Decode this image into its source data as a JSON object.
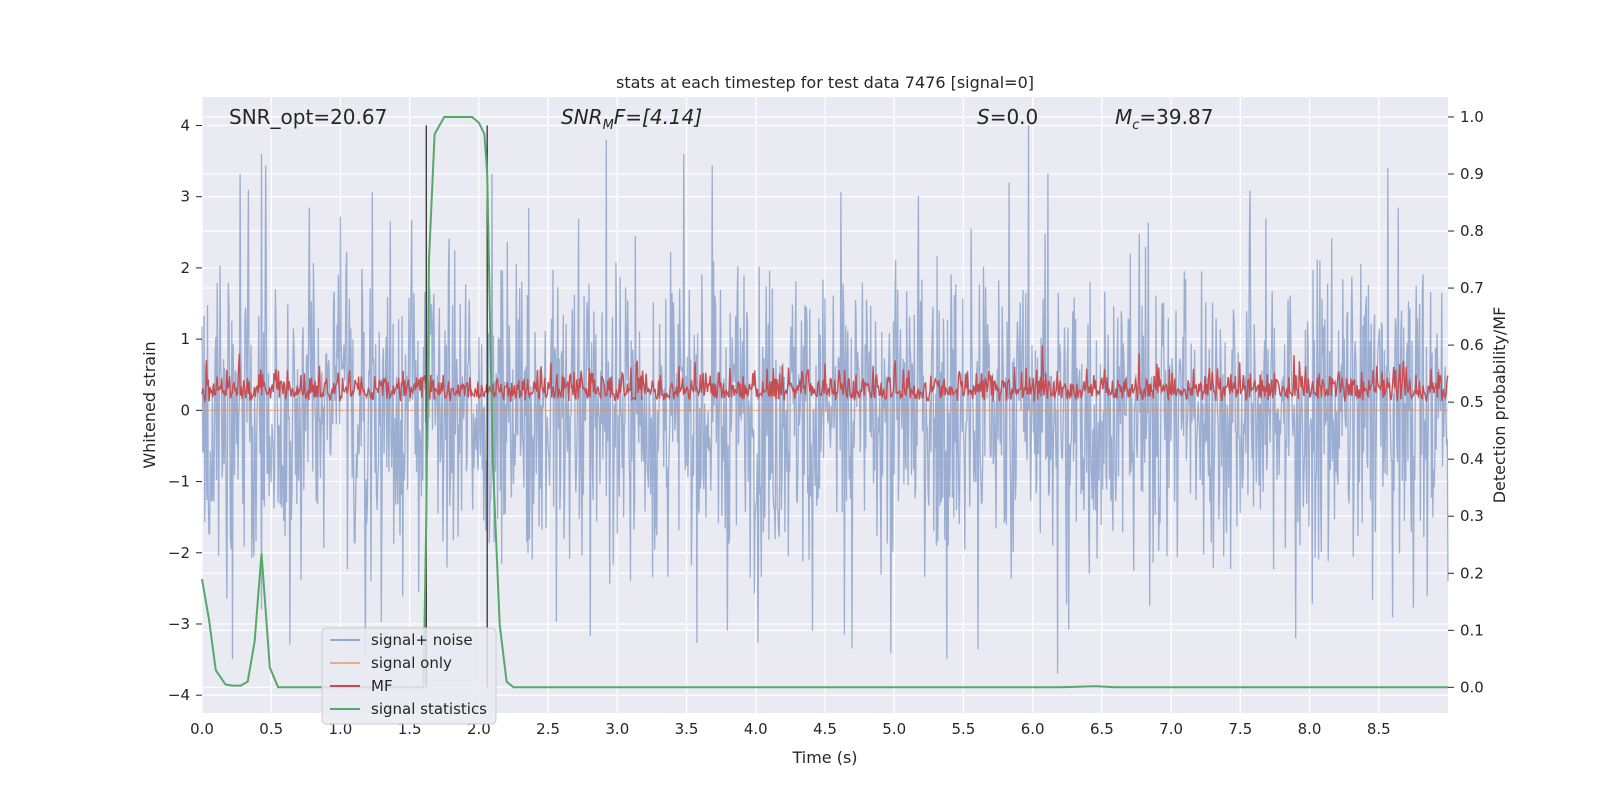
{
  "chart_data": {
    "type": "line",
    "title": "stats at each timestep for test data 7476 [signal=0]",
    "xlabel": "Time (s)",
    "ylabel": "Whitened strain",
    "y2label": "Detection probability/MF",
    "xlim": [
      0.0,
      9.0
    ],
    "ylim": [
      -4.25,
      4.4
    ],
    "y2lim": [
      -0.045,
      1.035
    ],
    "x_ticks": [
      "0.0",
      "0.5",
      "1.0",
      "1.5",
      "2.0",
      "2.5",
      "3.0",
      "3.5",
      "4.0",
      "4.5",
      "5.0",
      "5.5",
      "6.0",
      "6.5",
      "7.0",
      "7.5",
      "8.0",
      "8.5"
    ],
    "y_ticks": [
      "4",
      "3",
      "2",
      "1",
      "0",
      "−1",
      "−2",
      "−3",
      "−4"
    ],
    "y2_ticks": [
      "1.0",
      "0.9",
      "0.8",
      "0.7",
      "0.6",
      "0.5",
      "0.4",
      "0.3",
      "0.2",
      "0.1",
      "0.0"
    ],
    "grid": true,
    "legend_position": "lower-left",
    "annotations": {
      "snr_opt": "SNR_opt=20.67",
      "snr_mf_main": "SNR",
      "snr_mf_sub": "M",
      "snr_mf_rest": "F=[4.14]",
      "s_main": "S",
      "s_rest": "=0.0",
      "mc_main": "M",
      "mc_sub": "c",
      "mc_rest": "=39.87"
    },
    "vertical_lines_x": [
      1.62,
      2.06
    ],
    "series": [
      {
        "name": "signal+ noise",
        "color": "#4c72b0",
        "axis": "left",
        "style": "dense noisy strain, roughly between -3.7 and 4.0",
        "envelope_typical": [
          -1.6,
          1.7
        ],
        "peaks": [
          {
            "x": 0.43,
            "y": 3.6
          },
          {
            "x": 5.97,
            "y": 4.0
          },
          {
            "x": 6.18,
            "y": -3.7
          },
          {
            "x": 2.92,
            "y": 3.8
          }
        ]
      },
      {
        "name": "signal only",
        "color": "#dd8452",
        "axis": "left",
        "values_note": "flat at zero (signal=0)",
        "x": [
          0.0,
          9.0
        ],
        "y": [
          0.0,
          0.0
        ]
      },
      {
        "name": "MF",
        "color": "#c44e52",
        "axis": "right",
        "style": "noisy trace mostly between 0.5 and 0.58",
        "peak": {
          "x": 6.07,
          "y": 0.6
        }
      },
      {
        "name": "signal statistics",
        "color": "#55a868",
        "axis": "right",
        "x": [
          0.0,
          0.05,
          0.1,
          0.17,
          0.22,
          0.28,
          0.33,
          0.38,
          0.43,
          0.49,
          0.55,
          1.58,
          1.6,
          1.62,
          1.64,
          1.68,
          1.75,
          1.85,
          1.95,
          2.0,
          2.04,
          2.06,
          2.1,
          2.15,
          2.2,
          2.25,
          2.3,
          6.2,
          6.45,
          6.6,
          9.0
        ],
        "y": [
          0.19,
          0.12,
          0.03,
          0.005,
          0.003,
          0.003,
          0.01,
          0.08,
          0.235,
          0.035,
          0.0,
          0.0,
          0.0,
          0.3,
          0.75,
          0.97,
          1.0,
          1.0,
          1.0,
          0.99,
          0.97,
          0.9,
          0.4,
          0.11,
          0.01,
          0.0,
          0.0,
          0.0,
          0.002,
          0.0,
          0.0
        ]
      }
    ]
  }
}
